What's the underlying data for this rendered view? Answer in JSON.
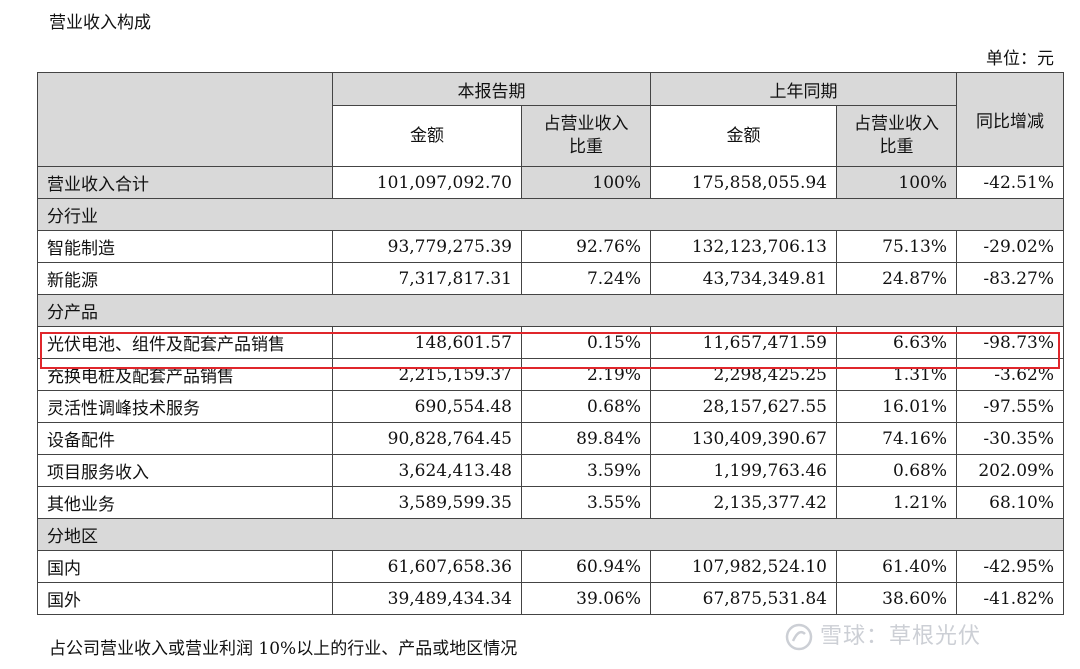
{
  "title": "营业收入构成",
  "unit_label": "单位：元",
  "headers": {
    "current_period": "本报告期",
    "prior_period": "上年同期",
    "amount": "金额",
    "ratio_line1": "占营业收入",
    "ratio_line2": "比重",
    "yoy": "同比增减"
  },
  "total": {
    "label": "营业收入合计",
    "cur_amount": "101,097,092.70",
    "cur_ratio": "100%",
    "prev_amount": "175,858,055.94",
    "prev_ratio": "100%",
    "yoy": "-42.51%"
  },
  "sections": {
    "industry": "分行业",
    "product": "分产品",
    "region": "分地区"
  },
  "industry_rows": [
    {
      "label": "智能制造",
      "cur_amount": "93,779,275.39",
      "cur_ratio": "92.76%",
      "prev_amount": "132,123,706.13",
      "prev_ratio": "75.13%",
      "yoy": "-29.02%"
    },
    {
      "label": "新能源",
      "cur_amount": "7,317,817.31",
      "cur_ratio": "7.24%",
      "prev_amount": "43,734,349.81",
      "prev_ratio": "24.87%",
      "yoy": "-83.27%"
    }
  ],
  "product_rows": [
    {
      "label": "光伏电池、组件及配套产品销售",
      "cur_amount": "148,601.57",
      "cur_ratio": "0.15%",
      "prev_amount": "11,657,471.59",
      "prev_ratio": "6.63%",
      "yoy": "-98.73%"
    },
    {
      "label": "充换电桩及配套产品销售",
      "cur_amount": "2,215,159.37",
      "cur_ratio": "2.19%",
      "prev_amount": "2,298,425.25",
      "prev_ratio": "1.31%",
      "yoy": "-3.62%"
    },
    {
      "label": "灵活性调峰技术服务",
      "cur_amount": "690,554.48",
      "cur_ratio": "0.68%",
      "prev_amount": "28,157,627.55",
      "prev_ratio": "16.01%",
      "yoy": "-97.55%"
    },
    {
      "label": "设备配件",
      "cur_amount": "90,828,764.45",
      "cur_ratio": "89.84%",
      "prev_amount": "130,409,390.67",
      "prev_ratio": "74.16%",
      "yoy": "-30.35%"
    },
    {
      "label": "项目服务收入",
      "cur_amount": "3,624,413.48",
      "cur_ratio": "3.59%",
      "prev_amount": "1,199,763.46",
      "prev_ratio": "0.68%",
      "yoy": "202.09%"
    },
    {
      "label": "其他业务",
      "cur_amount": "3,589,599.35",
      "cur_ratio": "3.55%",
      "prev_amount": "2,135,377.42",
      "prev_ratio": "1.21%",
      "yoy": "68.10%"
    }
  ],
  "region_rows": [
    {
      "label": "国内",
      "cur_amount": "61,607,658.36",
      "cur_ratio": "60.94%",
      "prev_amount": "107,982,524.10",
      "prev_ratio": "61.40%",
      "yoy": "-42.95%"
    },
    {
      "label": "国外",
      "cur_amount": "39,489,434.34",
      "cur_ratio": "39.06%",
      "prev_amount": "67,875,531.84",
      "prev_ratio": "38.60%",
      "yoy": "-41.82%"
    }
  ],
  "footer": "占公司营业收入或营业利润 10%以上的行业、产品或地区情况",
  "watermark": "雪球：草根光伏",
  "colors": {
    "header_grey": "#d9d9d9",
    "highlight_red": "#e0262b",
    "watermark": "#c4c7ce"
  }
}
